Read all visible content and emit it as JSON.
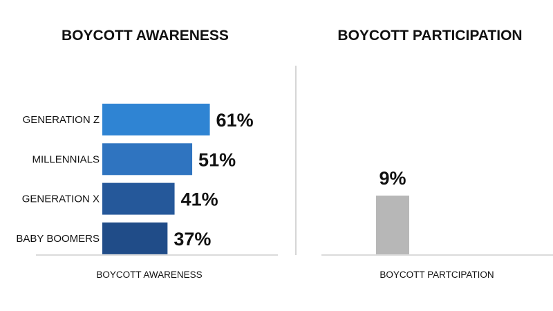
{
  "chart_data": [
    {
      "type": "bar",
      "orientation": "horizontal",
      "title": "BOYCOTT AWARENESS",
      "xlabel": "BOYCOTT AWARENESS",
      "categories": [
        "GENERATION Z",
        "MILLENNIALS",
        "GENERATION X",
        "BABY BOOMERS"
      ],
      "values": [
        61,
        51,
        41,
        37
      ],
      "value_labels": [
        "61%",
        "51%",
        "41%",
        "37%"
      ],
      "colors": [
        "#2f84d3",
        "#2f74c0",
        "#25589a",
        "#204c88"
      ],
      "xlim": [
        0,
        100
      ],
      "grid": false,
      "legend": "none"
    },
    {
      "type": "bar",
      "orientation": "vertical",
      "title": "BOYCOTT PARTICIPATION",
      "xlabel": "BOYCOTT PARTCIPATION",
      "values": [
        9
      ],
      "value_labels": [
        "9%"
      ],
      "colors": [
        "#b7b7b7"
      ],
      "ylim": [
        0,
        30
      ],
      "grid": false,
      "legend": "none"
    }
  ]
}
